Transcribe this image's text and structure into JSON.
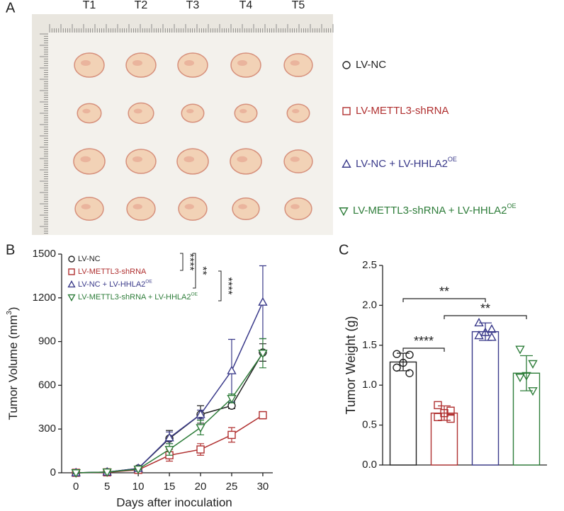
{
  "panel_labels": {
    "a": "A",
    "b": "B",
    "c": "C"
  },
  "photo": {
    "columns": [
      "T1",
      "T2",
      "T3",
      "T4",
      "T5"
    ],
    "groups": [
      {
        "name": "LV-NC",
        "color": "#222222",
        "marker": "circle"
      },
      {
        "name": "LV-METTL3-shRNA",
        "color": "#b03030",
        "marker": "square"
      },
      {
        "name": "LV-NC + LV-HHLA2",
        "superscript": "OE",
        "color": "#3a3a8a",
        "marker": "triangle-up"
      },
      {
        "name": "LV-METTL3-shRNA + LV-HHLA2",
        "superscript": "OE",
        "color": "#2e7d3a",
        "marker": "triangle-down"
      }
    ]
  },
  "chart_data": [
    {
      "type": "line",
      "xlabel": "Days after inoculation",
      "ylabel": "Tumor Volume (mm",
      "ylabel_superscript": "3",
      "ylabel_end": ")",
      "x": [
        0,
        5,
        10,
        15,
        20,
        25,
        30
      ],
      "xlim": [
        -2.3,
        31.6
      ],
      "xticks": [
        0,
        5,
        10,
        15,
        20,
        25,
        30
      ],
      "ylim": [
        0,
        1500
      ],
      "yticks": [
        0,
        300,
        600,
        900,
        1200,
        1500
      ],
      "series": [
        {
          "name": "LV-NC",
          "color": "#222222",
          "marker": "circle",
          "values": [
            0,
            5,
            30,
            235,
            400,
            460,
            825
          ],
          "errors": [
            0,
            2,
            5,
            55,
            60,
            20,
            60
          ]
        },
        {
          "name": "LV-METTL3-shRNA",
          "color": "#b03030",
          "marker": "square",
          "values": [
            0,
            3,
            20,
            120,
            160,
            260,
            395
          ],
          "errors": [
            0,
            2,
            5,
            40,
            40,
            50,
            25
          ]
        },
        {
          "name": "LV-NC + LV-HHLA2",
          "superscript": "OE",
          "color": "#3a3a8a",
          "marker": "triangle-up",
          "values": [
            0,
            5,
            30,
            240,
            400,
            700,
            1170
          ],
          "errors": [
            0,
            2,
            5,
            40,
            30,
            215,
            250
          ]
        },
        {
          "name": "LV-METTL3-shRNA + LV-HHLA2",
          "superscript": "OE",
          "color": "#2e7d3a",
          "marker": "triangle-down",
          "values": [
            0,
            5,
            25,
            160,
            310,
            510,
            820
          ],
          "errors": [
            0,
            2,
            5,
            40,
            50,
            30,
            100
          ]
        }
      ],
      "annotations": [
        "****",
        "**",
        "****"
      ]
    },
    {
      "type": "bar",
      "ylabel": "Tumor Weight (g)",
      "categories": [
        null,
        null,
        null,
        null
      ],
      "values": [
        1.29,
        0.65,
        1.67,
        1.15
      ],
      "errors": [
        0.11,
        0.09,
        0.11,
        0.22
      ],
      "colors": [
        "#222222",
        "#b03030",
        "#3a3a8a",
        "#2e7d3a"
      ],
      "markers": [
        "circle",
        "square",
        "triangle-up",
        "triangle-down"
      ],
      "points": [
        [
          1.39,
          1.38,
          1.28,
          1.22,
          1.15
        ],
        [
          0.75,
          0.68,
          0.65,
          0.6,
          0.58
        ],
        [
          1.78,
          1.7,
          1.66,
          1.62,
          1.6
        ],
        [
          1.45,
          1.27,
          1.12,
          1.1,
          0.93
        ]
      ],
      "ylim": [
        0,
        2.5
      ],
      "yticks": [
        {
          "value": 0,
          "label": "0.0"
        },
        0.5,
        {
          "value": 1,
          "label": "1.0"
        },
        1.5,
        {
          "value": 2,
          "label": "2.0"
        },
        2.5
      ],
      "annotations": [
        "**",
        "****",
        "**"
      ]
    }
  ]
}
